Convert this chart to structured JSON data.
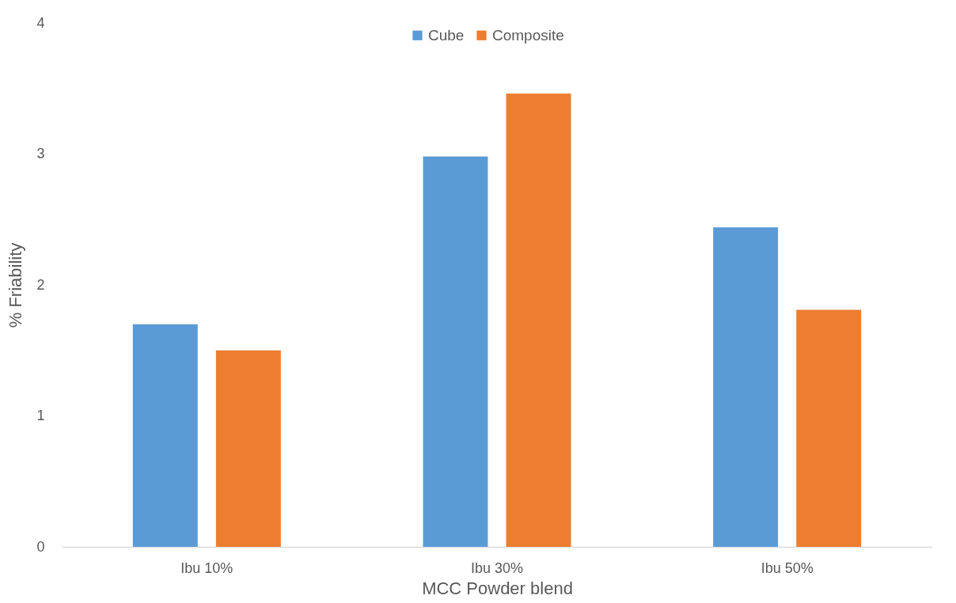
{
  "chart_data": {
    "type": "bar",
    "xlabel": "MCC Powder blend",
    "ylabel": "% Friability",
    "categories": [
      "Ibu 10%",
      "Ibu 30%",
      "Ibu 50%"
    ],
    "series": [
      {
        "name": "Cube",
        "color": "#5b9bd5",
        "values": [
          1.7,
          2.98,
          2.44
        ]
      },
      {
        "name": "Composite",
        "color": "#ed7d31",
        "values": [
          1.5,
          3.46,
          1.81
        ]
      }
    ],
    "ylim": [
      0,
      4
    ],
    "yticks": [
      0,
      1,
      2,
      3,
      4
    ],
    "grid": false,
    "legend": "top"
  }
}
